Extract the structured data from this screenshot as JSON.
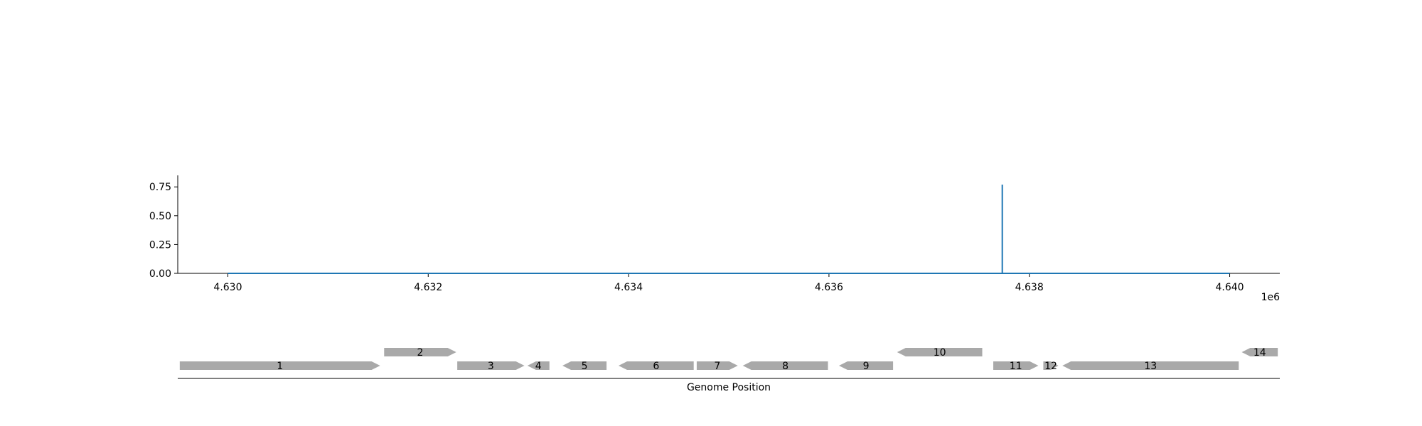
{
  "chart_data": [
    {
      "type": "line",
      "x_exponent_label": "1e6",
      "xlim": [
        4629500,
        4640500
      ],
      "ylim": [
        0,
        0.85
      ],
      "x_ticks": [
        4630000,
        4632000,
        4634000,
        4636000,
        4638000,
        4640000
      ],
      "x_tick_labels": [
        "4.630",
        "4.632",
        "4.634",
        "4.636",
        "4.638",
        "4.640"
      ],
      "y_ticks": [
        0,
        0.25,
        0.5,
        0.75
      ],
      "y_tick_labels": [
        "0.00",
        "0.25",
        "0.50",
        "0.75"
      ],
      "grid": false,
      "series": [
        {
          "color": "#1f77b4",
          "x": [
            4630000,
            4637730,
            4637730,
            4637730,
            4640000
          ],
          "y": [
            0,
            0,
            0.77,
            0,
            0
          ]
        }
      ]
    },
    {
      "type": "gene_map",
      "xlabel": "Genome Position",
      "xlim": [
        4629500,
        4640500
      ],
      "color": "#a9a9a9",
      "genes": [
        {
          "label": "1",
          "start": 4629520,
          "end": 4631520,
          "strand": "+",
          "row": 0
        },
        {
          "label": "2",
          "start": 4631560,
          "end": 4632280,
          "strand": "+",
          "row": 1
        },
        {
          "label": "3",
          "start": 4632290,
          "end": 4632960,
          "strand": "+",
          "row": 0
        },
        {
          "label": "4",
          "start": 4632990,
          "end": 4633210,
          "strand": "-",
          "row": 0
        },
        {
          "label": "5",
          "start": 4633340,
          "end": 4633780,
          "strand": "-",
          "row": 0
        },
        {
          "label": "6",
          "start": 4633900,
          "end": 4634650,
          "strand": "-",
          "row": 0
        },
        {
          "label": "7",
          "start": 4634680,
          "end": 4635090,
          "strand": "+",
          "row": 0
        },
        {
          "label": "8",
          "start": 4635140,
          "end": 4635990,
          "strand": "-",
          "row": 0
        },
        {
          "label": "9",
          "start": 4636100,
          "end": 4636640,
          "strand": "-",
          "row": 0
        },
        {
          "label": "10",
          "start": 4636680,
          "end": 4637530,
          "strand": "-",
          "row": 1
        },
        {
          "label": "11",
          "start": 4637640,
          "end": 4638090,
          "strand": "+",
          "row": 0
        },
        {
          "label": "12",
          "start": 4638140,
          "end": 4638290,
          "strand": "+",
          "row": 0
        },
        {
          "label": "13",
          "start": 4638330,
          "end": 4640090,
          "strand": "-",
          "row": 0
        },
        {
          "label": "14",
          "start": 4640120,
          "end": 4640480,
          "strand": "-",
          "row": 1
        }
      ]
    }
  ]
}
